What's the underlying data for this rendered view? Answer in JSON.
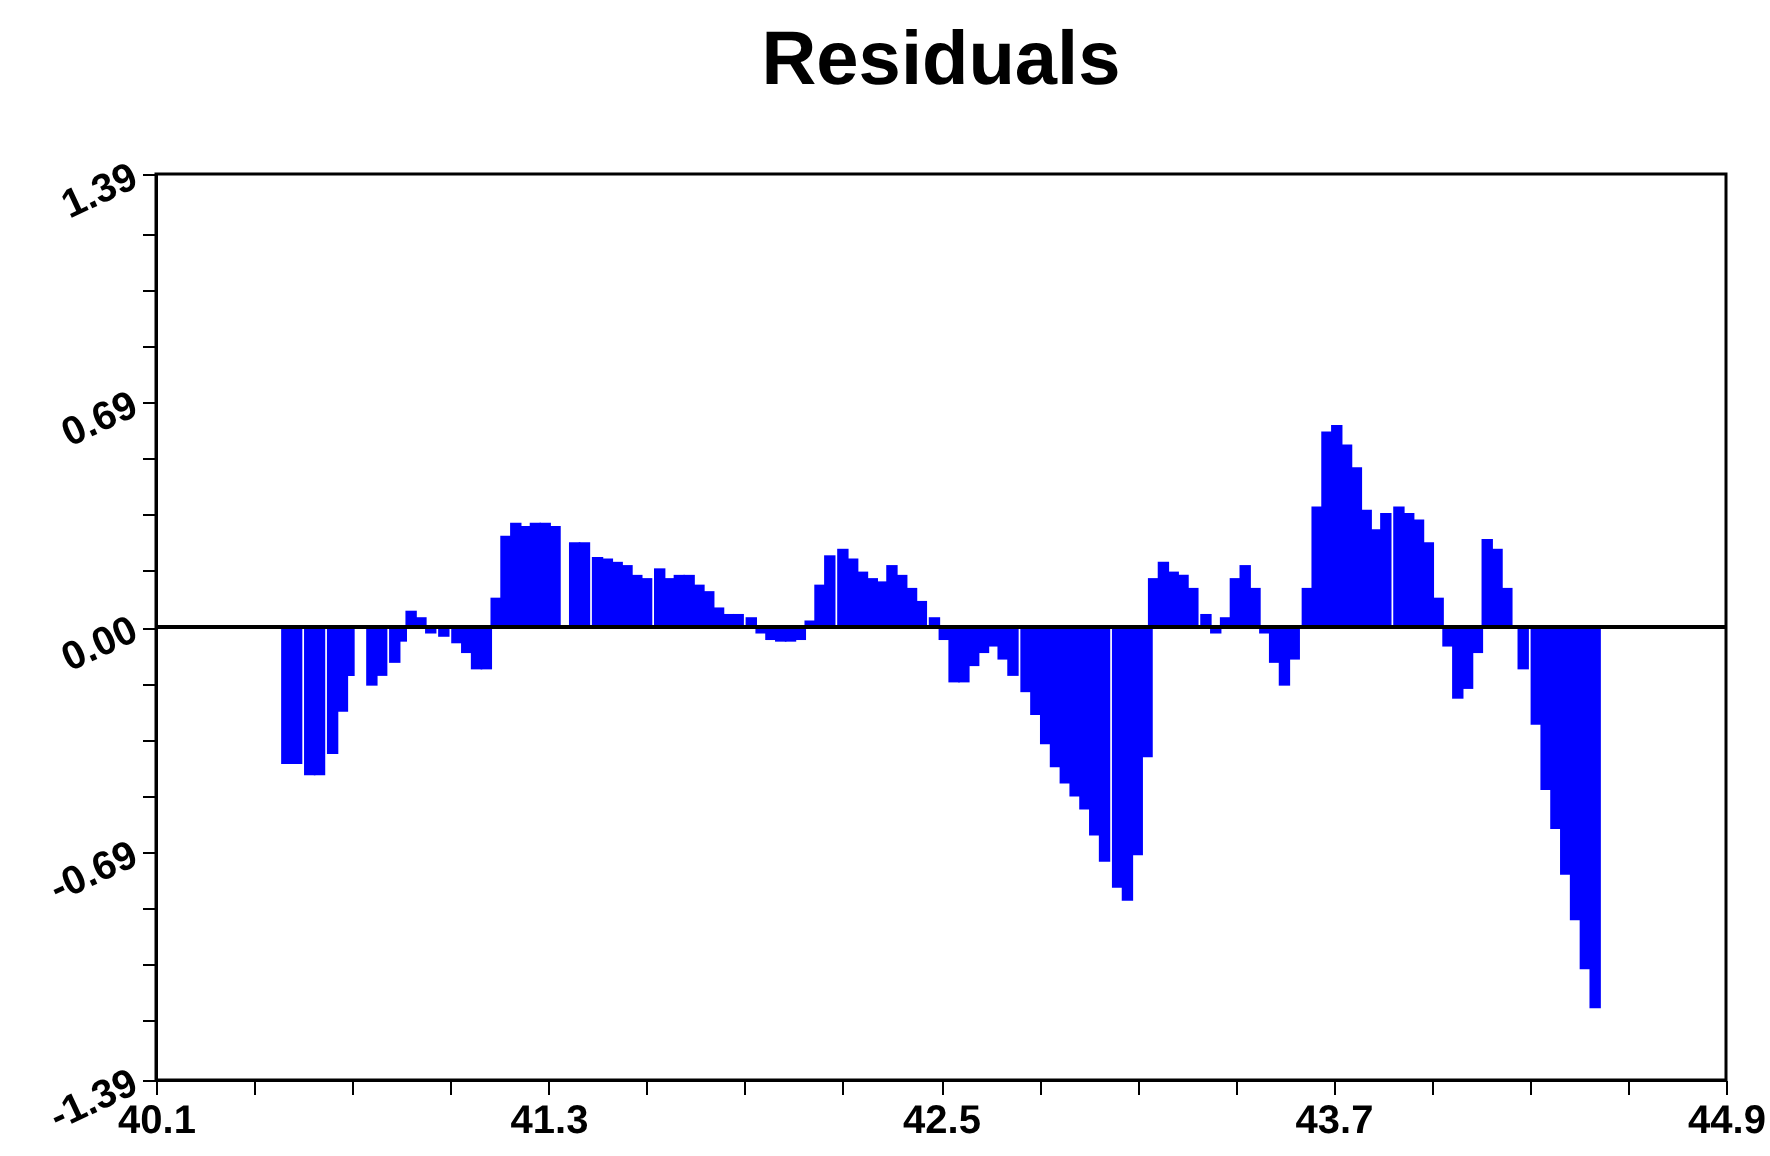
{
  "chart_data": {
    "type": "bar",
    "title": "Residuals",
    "color": "#0000ff",
    "x": [
      40.5,
      40.53,
      40.57,
      40.6,
      40.64,
      40.67,
      40.69,
      40.76,
      40.79,
      40.83,
      40.85,
      40.88,
      40.91,
      40.94,
      40.98,
      41.02,
      41.05,
      41.08,
      41.11,
      41.14,
      41.17,
      41.2,
      41.23,
      41.26,
      41.29,
      41.32,
      41.38,
      41.41,
      41.45,
      41.48,
      41.51,
      41.54,
      41.57,
      41.6,
      41.64,
      41.67,
      41.7,
      41.73,
      41.76,
      41.79,
      41.82,
      41.85,
      41.88,
      41.92,
      41.95,
      41.98,
      42.01,
      42.04,
      42.07,
      42.1,
      42.13,
      42.16,
      42.2,
      42.23,
      42.26,
      42.29,
      42.32,
      42.35,
      42.38,
      42.41,
      42.44,
      42.48,
      42.51,
      42.54,
      42.57,
      42.6,
      42.63,
      42.66,
      42.69,
      42.72,
      42.76,
      42.79,
      42.82,
      42.85,
      42.88,
      42.91,
      42.94,
      42.97,
      43.0,
      43.04,
      43.07,
      43.1,
      43.13,
      43.15,
      43.18,
      43.21,
      43.24,
      43.27,
      43.31,
      43.34,
      43.37,
      43.4,
      43.43,
      43.46,
      43.49,
      43.52,
      43.55,
      43.58,
      43.62,
      43.65,
      43.68,
      43.71,
      43.74,
      43.77,
      43.8,
      43.83,
      43.86,
      43.9,
      43.93,
      43.96,
      43.99,
      44.02,
      44.05,
      44.08,
      44.11,
      44.14,
      44.17,
      44.2,
      44.23,
      44.28,
      44.32,
      44.35,
      44.38,
      44.41,
      44.44,
      44.47,
      44.5
    ],
    "values": [
      -0.42,
      -0.42,
      -0.455,
      -0.455,
      -0.39,
      -0.26,
      -0.15,
      -0.18,
      -0.15,
      -0.11,
      -0.045,
      0.05,
      0.03,
      -0.02,
      -0.03,
      -0.05,
      -0.08,
      -0.13,
      -0.13,
      0.09,
      0.28,
      0.32,
      0.31,
      0.32,
      0.32,
      0.31,
      0.26,
      0.26,
      0.215,
      0.21,
      0.2,
      0.19,
      0.16,
      0.15,
      0.18,
      0.15,
      0.16,
      0.16,
      0.13,
      0.11,
      0.06,
      0.04,
      0.04,
      0.03,
      -0.02,
      -0.04,
      -0.045,
      -0.045,
      -0.04,
      0.02,
      0.13,
      0.22,
      0.24,
      0.21,
      0.17,
      0.15,
      0.14,
      0.19,
      0.16,
      0.12,
      0.08,
      0.03,
      -0.04,
      -0.17,
      -0.17,
      -0.12,
      -0.08,
      -0.06,
      -0.1,
      -0.15,
      -0.2,
      -0.27,
      -0.36,
      -0.43,
      -0.48,
      -0.52,
      -0.56,
      -0.64,
      -0.72,
      -0.8,
      -0.84,
      -0.7,
      -0.4,
      0.15,
      0.2,
      0.17,
      0.16,
      0.12,
      0.04,
      -0.02,
      0.03,
      0.15,
      0.19,
      0.12,
      -0.02,
      -0.11,
      -0.18,
      -0.1,
      0.12,
      0.37,
      0.6,
      0.62,
      0.56,
      0.49,
      0.36,
      0.3,
      0.35,
      0.37,
      0.35,
      0.33,
      0.26,
      0.09,
      -0.06,
      -0.22,
      -0.19,
      -0.08,
      0.27,
      0.24,
      0.12,
      -0.13,
      -0.3,
      -0.5,
      -0.62,
      -0.76,
      -0.9,
      -1.05,
      -1.17
    ],
    "xlim": [
      40.1,
      44.9
    ],
    "xticks": [
      40.1,
      {
        "value": 40.4,
        "label": null
      },
      {
        "value": 40.7,
        "label": null
      },
      {
        "value": 41.0,
        "label": null
      },
      41.3,
      {
        "value": 41.6,
        "label": null
      },
      {
        "value": 41.9,
        "label": null
      },
      {
        "value": 42.2,
        "label": null
      },
      42.5,
      {
        "value": 42.8,
        "label": null
      },
      {
        "value": 43.1,
        "label": null
      },
      {
        "value": 43.4,
        "label": null
      },
      43.7,
      {
        "value": 44.0,
        "label": null
      },
      {
        "value": 44.3,
        "label": null
      },
      {
        "value": 44.6,
        "label": null
      },
      44.9
    ],
    "ylim": [
      -1.39,
      1.39
    ],
    "yticks": [
      -1.39,
      {
        "value": -1.2075,
        "label": null
      },
      {
        "value": -1.035,
        "label": null
      },
      {
        "value": -0.8625,
        "label": null
      },
      -0.69,
      {
        "value": -0.5175,
        "label": null
      },
      {
        "value": -0.345,
        "label": null
      },
      {
        "value": -0.1725,
        "label": null
      },
      {
        "value": 0,
        "label": "0.00"
      },
      {
        "value": 0.1725,
        "label": null
      },
      {
        "value": 0.345,
        "label": null
      },
      {
        "value": 0.5175,
        "label": null
      },
      0.69,
      {
        "value": 0.8625,
        "label": null
      },
      {
        "value": 1.035,
        "label": null
      },
      {
        "value": 1.2075,
        "label": null
      },
      1.39
    ],
    "ref_lines": [
      {
        "axis": "y",
        "value": 0,
        "color": "#000000"
      }
    ]
  }
}
